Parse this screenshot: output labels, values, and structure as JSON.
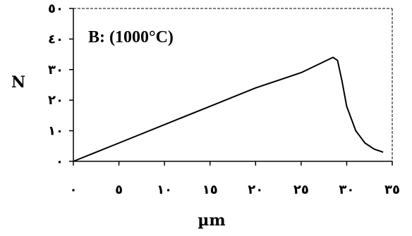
{
  "chart_data": {
    "type": "line",
    "title": "B: (1000°C)",
    "xlabel": "µm",
    "ylabel": "N",
    "xlim": [
      0,
      35
    ],
    "ylim": [
      0,
      50
    ],
    "x_ticks": [
      0,
      5,
      10,
      15,
      20,
      25,
      30,
      35
    ],
    "x_tick_labels": [
      "٠",
      "٥",
      "١٠",
      "١٥",
      "٢٠",
      "٢٥",
      "٣٠",
      "٣٥"
    ],
    "y_ticks": [
      0,
      10,
      20,
      30,
      40,
      50
    ],
    "y_tick_labels": [
      "٠",
      "١٠",
      "٢٠",
      "٣٠",
      "٤٠",
      "٥٠"
    ],
    "grid": false,
    "line_color": "#000000",
    "series": [
      {
        "x": [
          0,
          5,
          10,
          15,
          20,
          25,
          28.5,
          29,
          29.5,
          30,
          31,
          32,
          33,
          34
        ],
        "y": [
          0,
          6,
          12,
          18,
          24,
          29,
          34,
          33,
          26,
          18,
          10,
          6,
          4,
          3
        ]
      }
    ]
  }
}
